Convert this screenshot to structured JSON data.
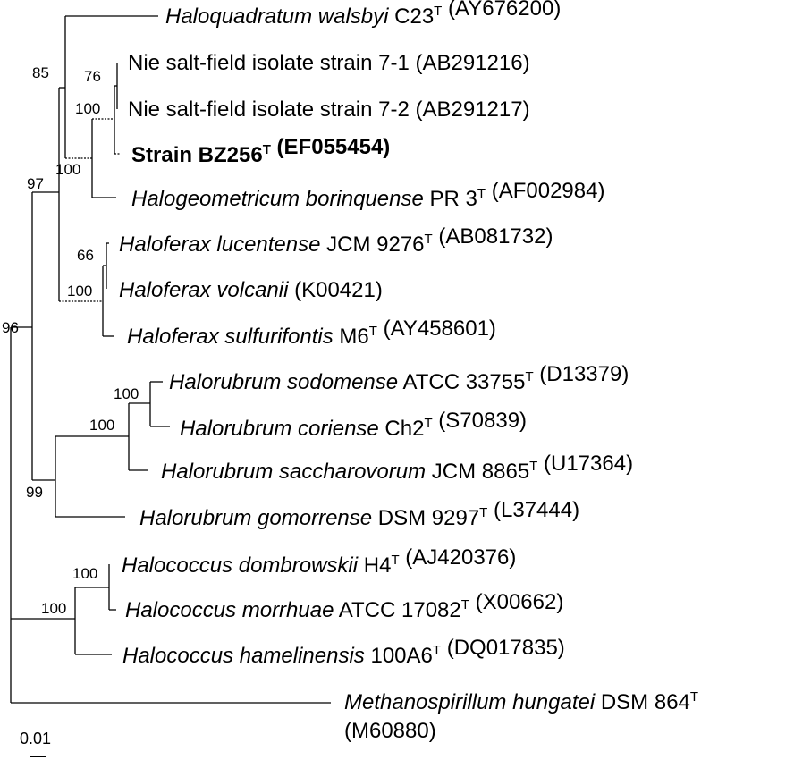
{
  "leaves": [
    {
      "id": "hq-walsbyi",
      "parts": [
        {
          "t": "Haloquadratum walsbyi",
          "i": true
        },
        {
          "t": " C23"
        },
        {
          "t": "T",
          "sup": true
        },
        {
          "t": " (AY676200)"
        }
      ]
    },
    {
      "id": "nie-7-1",
      "parts": [
        {
          "t": "Nie salt-field isolate strain 7-1 (AB291216)"
        }
      ]
    },
    {
      "id": "nie-7-2",
      "parts": [
        {
          "t": "Nie salt-field isolate strain 7-2 (AB291217)"
        }
      ]
    },
    {
      "id": "strain-bz256",
      "bold": true,
      "parts": [
        {
          "t": "Strain BZ256"
        },
        {
          "t": "T",
          "sup": true
        },
        {
          "t": " (EF055454)"
        }
      ]
    },
    {
      "id": "hg-borinquense",
      "parts": [
        {
          "t": "Halogeometricum borinquense",
          "i": true
        },
        {
          "t": " PR 3"
        },
        {
          "t": "T",
          "sup": true
        },
        {
          "t": " (AF002984)"
        }
      ]
    },
    {
      "id": "hf-lucentense",
      "parts": [
        {
          "t": "Haloferax lucentense",
          "i": true
        },
        {
          "t": " JCM 9276"
        },
        {
          "t": "T",
          "sup": true
        },
        {
          "t": " (AB081732)"
        }
      ]
    },
    {
      "id": "hf-volcanii",
      "parts": [
        {
          "t": "Haloferax volcanii",
          "i": true
        },
        {
          "t": " (K00421)"
        }
      ]
    },
    {
      "id": "hf-sulfurifontis",
      "parts": [
        {
          "t": "Haloferax sulfurifontis",
          "i": true
        },
        {
          "t": " M6"
        },
        {
          "t": "T",
          "sup": true
        },
        {
          "t": " (AY458601)"
        }
      ]
    },
    {
      "id": "hr-sodomense",
      "parts": [
        {
          "t": "Halorubrum sodomense",
          "i": true
        },
        {
          "t": " ATCC 33755"
        },
        {
          "t": "T",
          "sup": true
        },
        {
          "t": " (D13379)"
        }
      ]
    },
    {
      "id": "hr-coriense",
      "parts": [
        {
          "t": "Halorubrum coriense",
          "i": true
        },
        {
          "t": " Ch2"
        },
        {
          "t": "T",
          "sup": true
        },
        {
          "t": " (S70839)"
        }
      ]
    },
    {
      "id": "hr-saccharovorum",
      "parts": [
        {
          "t": "Halorubrum saccharovorum",
          "i": true
        },
        {
          "t": " JCM 8865"
        },
        {
          "t": "T",
          "sup": true
        },
        {
          "t": " (U17364)"
        }
      ]
    },
    {
      "id": "hr-gomorrense",
      "parts": [
        {
          "t": "Halorubrum gomorrense",
          "i": true
        },
        {
          "t": " DSM 9297"
        },
        {
          "t": "T",
          "sup": true
        },
        {
          "t": " (L37444)"
        }
      ]
    },
    {
      "id": "hc-dombrowskii",
      "parts": [
        {
          "t": "Halococcus dombrowskii",
          "i": true
        },
        {
          "t": " H4"
        },
        {
          "t": "T",
          "sup": true
        },
        {
          "t": " (AJ420376)"
        }
      ]
    },
    {
      "id": "hc-morrhuae",
      "parts": [
        {
          "t": "Halococcus morrhuae",
          "i": true
        },
        {
          "t": " ATCC 17082"
        },
        {
          "t": "T",
          "sup": true
        },
        {
          "t": " (X00662)"
        }
      ]
    },
    {
      "id": "hc-hamelinensis",
      "parts": [
        {
          "t": "Halococcus hamelinensis",
          "i": true
        },
        {
          "t": " 100A6"
        },
        {
          "t": "T",
          "sup": true
        },
        {
          "t": " (DQ017835)"
        }
      ]
    },
    {
      "id": "ms-hungatei",
      "parts": [
        {
          "t": "Methanospirillum hungatei",
          "i": true
        },
        {
          "t": " DSM 864"
        },
        {
          "t": "T",
          "sup": true
        }
      ],
      "line2": "(M60880)"
    }
  ],
  "bootstrap": [
    "85",
    "76",
    "100",
    "100",
    "97",
    "66",
    "100",
    "96",
    "100",
    "100",
    "99",
    "100",
    "100"
  ],
  "scale_label": "0.01"
}
